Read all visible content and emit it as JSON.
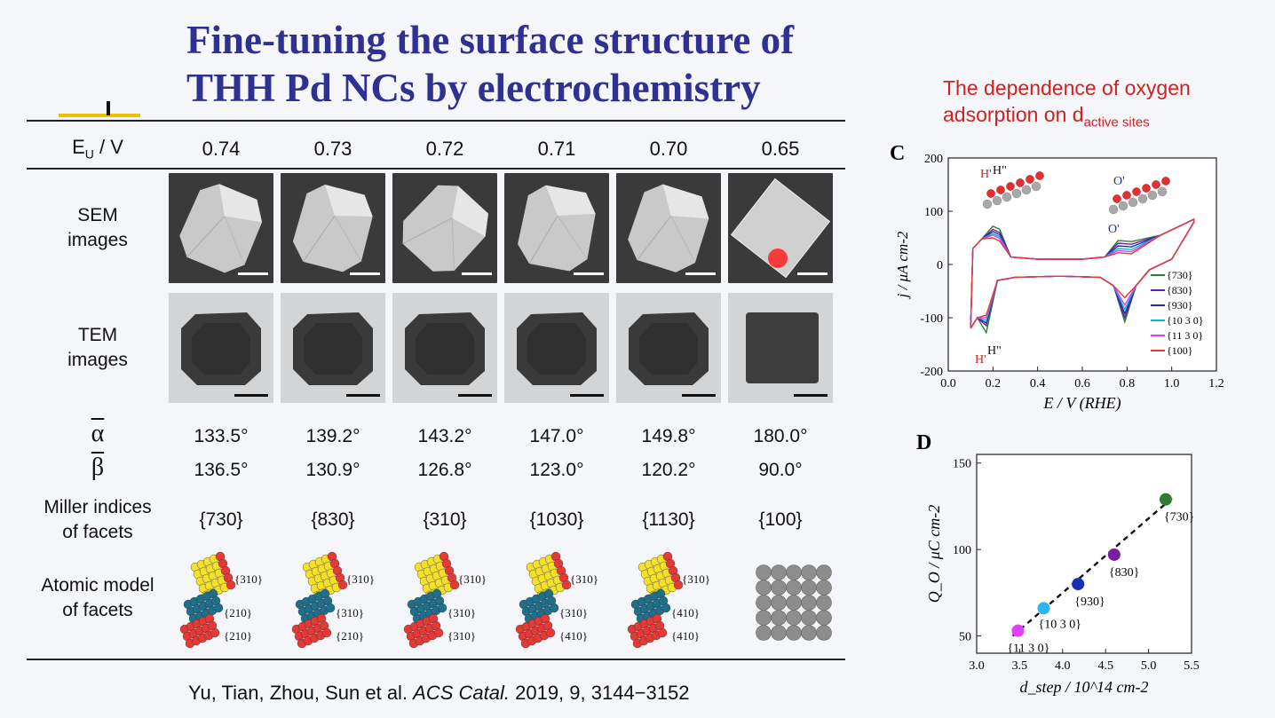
{
  "title": {
    "line1": "Fine-tuning the surface structure of",
    "line2": "THH Pd NCs by electrochemistry"
  },
  "table": {
    "eu_label_main": "E",
    "eu_label_sub": "U",
    "eu_label_unit": " / V",
    "columns": [
      "0.74",
      "0.73",
      "0.72",
      "0.71",
      "0.70",
      "0.65"
    ],
    "sem_label": [
      "SEM",
      "images"
    ],
    "tem_label": [
      "TEM",
      "images"
    ],
    "alpha_symbol": "α",
    "beta_symbol": "β",
    "alpha": [
      "133.5°",
      "139.2°",
      "143.2°",
      "147.0°",
      "149.8°",
      "180.0°"
    ],
    "beta": [
      "136.5°",
      "130.9°",
      "126.8°",
      "123.0°",
      "120.2°",
      "90.0°"
    ],
    "miller_label": [
      "Miller indices",
      "of facets"
    ],
    "miller": [
      "{730}",
      "{830}",
      "{310}",
      "{1030}",
      "{1130}",
      "{100}"
    ],
    "atomic_label": [
      "Atomic model",
      "of facets"
    ],
    "atomic_annotations": [
      [
        "{310}",
        "{210}",
        "{210}"
      ],
      [
        "{310}",
        "{310}",
        "{210}"
      ],
      [
        "{310}",
        "{310}",
        "{310}"
      ],
      [
        "{310}",
        "{310}",
        "{410}"
      ],
      [
        "{310}",
        "{410}",
        "{410}"
      ],
      []
    ]
  },
  "citation": {
    "authors": "Yu, Tian, Zhou, Sun et al. ",
    "journal": "ACS Catal.",
    "details": " 2019, 9, 3144−3152"
  },
  "note": {
    "line1": "The dependence of oxygen",
    "line2_main": "adsorption on d",
    "line2_sub": "active sites"
  },
  "chart_data": [
    {
      "panel_label": "C",
      "type": "line",
      "xlabel": "E / V (RHE)",
      "ylabel": "j / μA cm-2",
      "xlim": [
        0.0,
        1.2
      ],
      "ylim": [
        -200,
        200
      ],
      "xticks": [
        "0.0",
        "0.2",
        "0.4",
        "0.6",
        "0.8",
        "1.0",
        "1.2"
      ],
      "yticks": [
        "-200",
        "-100",
        "0",
        "100",
        "200"
      ],
      "legend_position": "right",
      "peak_labels": [
        "H'",
        "H\"",
        "O'",
        "O'",
        "H\"",
        "H'"
      ],
      "series": [
        {
          "name": "{730}",
          "color": "#2e7d32",
          "h_peak": 72,
          "o_peak": 45,
          "o_cath": -108,
          "h_cath": -128
        },
        {
          "name": "{830}",
          "color": "#6a1b9a",
          "h_peak": 66,
          "o_peak": 40,
          "o_cath": -100,
          "h_cath": -115
        },
        {
          "name": "{930}",
          "color": "#1a2fb0",
          "h_peak": 62,
          "o_peak": 35,
          "o_cath": -92,
          "h_cath": -110
        },
        {
          "name": "{10 3 0}",
          "color": "#00bcd4",
          "h_peak": 58,
          "o_peak": 30,
          "o_cath": -84,
          "h_cath": -105
        },
        {
          "name": "{11 3 0}",
          "color": "#e040fb",
          "h_peak": 55,
          "o_peak": 26,
          "o_cath": -76,
          "h_cath": -100
        },
        {
          "name": "{100}",
          "color": "#e53935",
          "h_peak": 50,
          "o_peak": 22,
          "o_cath": -62,
          "h_cath": -95
        }
      ]
    },
    {
      "panel_label": "D",
      "type": "scatter",
      "xlabel": "d_step / 10^14 cm-2",
      "ylabel": "Q_O / μC cm-2",
      "xlim": [
        3.0,
        5.5
      ],
      "ylim": [
        40,
        155
      ],
      "xticks": [
        "3.0",
        "3.5",
        "4.0",
        "4.5",
        "5.0",
        "5.5"
      ],
      "yticks": [
        "50",
        "100",
        "150"
      ],
      "points": [
        {
          "label": "{11 3 0}",
          "x": 3.48,
          "y": 53,
          "color": "#e040fb"
        },
        {
          "label": "{10 3 0}",
          "x": 3.78,
          "y": 66,
          "color": "#29b6f6"
        },
        {
          "label": "{930}",
          "x": 4.18,
          "y": 80,
          "color": "#1a2fb0"
        },
        {
          "label": "{830}",
          "x": 4.6,
          "y": 97,
          "color": "#7b1fa2"
        },
        {
          "label": "{730}",
          "x": 5.2,
          "y": 129,
          "color": "#2e7d32"
        }
      ],
      "fit_line": {
        "x": [
          3.42,
          5.28
        ],
        "y": [
          50,
          130
        ],
        "style": "dashed"
      }
    }
  ]
}
